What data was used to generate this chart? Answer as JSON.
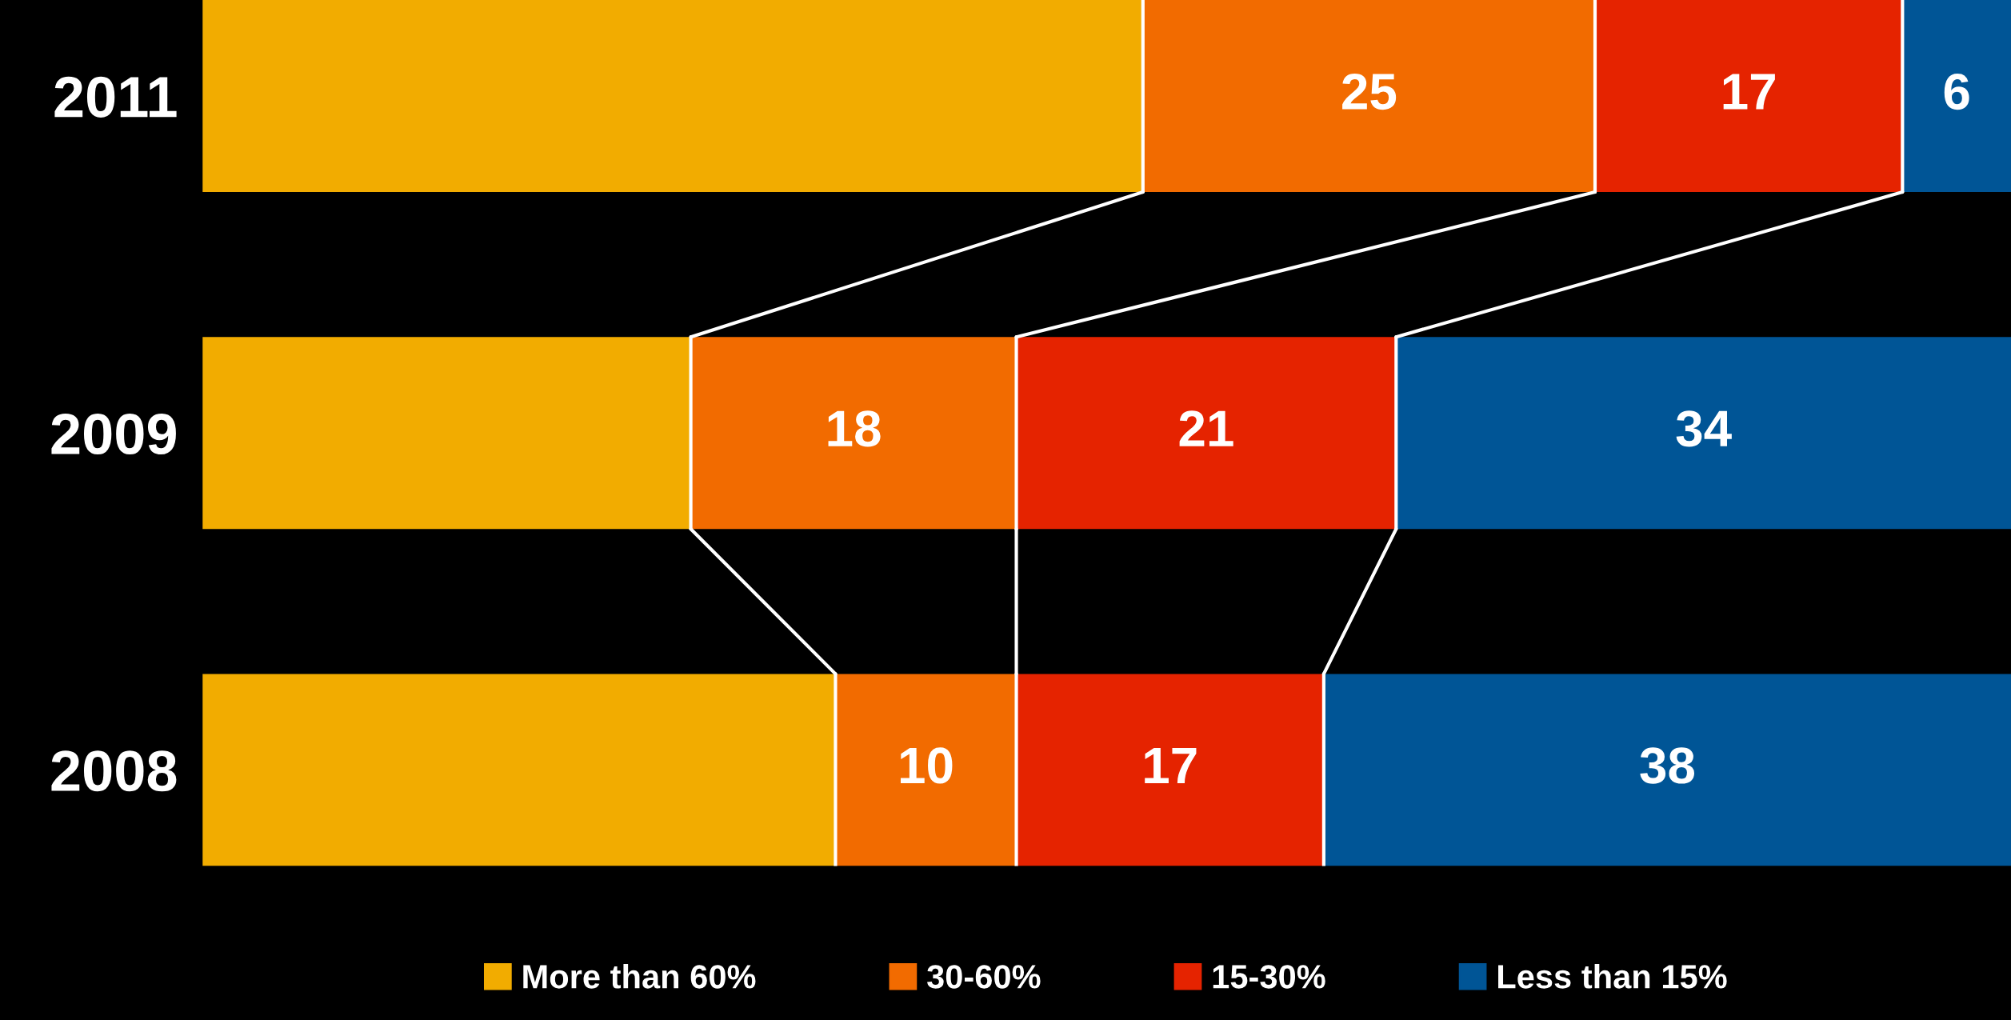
{
  "chart_data": {
    "type": "bar",
    "orientation": "horizontal",
    "stacked": true,
    "categories": [
      "2011",
      "2009",
      "2008"
    ],
    "xlim": [
      0,
      100
    ],
    "series": [
      {
        "name": "More than 60%",
        "color": "#f2ac00",
        "values": [
          52,
          27,
          35
        ],
        "value_labels": [
          null,
          null,
          null
        ]
      },
      {
        "name": "30-60%",
        "color": "#f26b00",
        "values": [
          25,
          18,
          10
        ],
        "value_labels": [
          "25",
          "18",
          "10"
        ]
      },
      {
        "name": "15-30%",
        "color": "#e52300",
        "values": [
          17,
          21,
          17
        ],
        "value_labels": [
          "17",
          "21",
          "17"
        ]
      },
      {
        "name": "Less than 15%",
        "color": "#005596",
        "values": [
          6,
          34,
          38
        ],
        "value_labels": [
          "6",
          "34",
          "38"
        ]
      }
    ],
    "legend": "bottom",
    "tick_labels": "y",
    "grid": false
  }
}
